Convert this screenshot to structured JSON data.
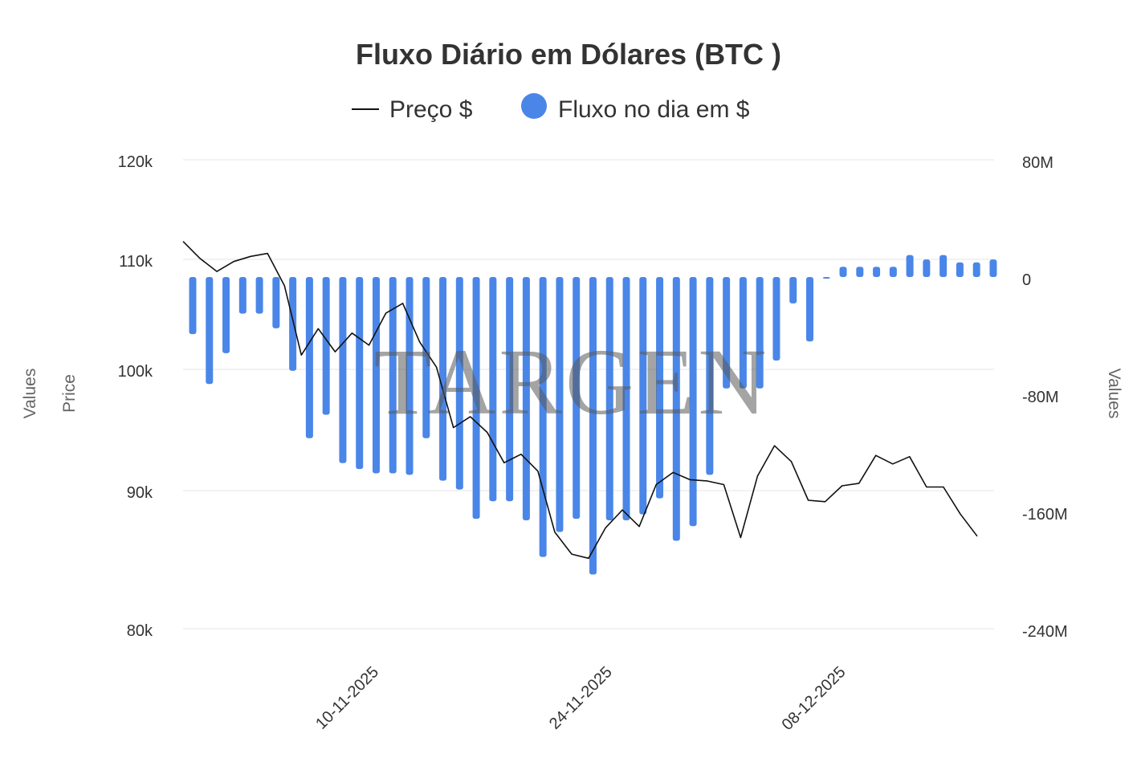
{
  "chart_data": {
    "type": "bar",
    "title": "Fluxo Diário em Dólares (BTC )",
    "legend": {
      "placement": "top-center",
      "items": [
        "Preço $",
        "Fluxo no dia em $"
      ]
    },
    "watermark": "TARGEN",
    "left_axis_titles": [
      "Values",
      "Price"
    ],
    "right_axis_title": "Values",
    "y_left_ticks": [
      "80k",
      "90k",
      "100k",
      "110k",
      "120k"
    ],
    "y_left_tick_values": [
      80000,
      90000,
      100000,
      110000,
      120000
    ],
    "y_right_ticks": [
      "-240M",
      "-160M",
      "-80M",
      "0",
      "80M"
    ],
    "y_right_tick_values": [
      -240,
      -160,
      -80,
      0,
      80
    ],
    "x_tick_labels": [
      "10-11-2025",
      "24-11-2025",
      "08-12-2025"
    ],
    "x_tick_indices": [
      11,
      25,
      39
    ],
    "grid": true,
    "colors": {
      "bars": "#4a86e8",
      "line": "#111111",
      "grid": "#e6e6e6"
    },
    "series": [
      {
        "name": "Preço $",
        "kind": "line",
        "axis": "left",
        "values": [
          111800,
          110100,
          108900,
          109800,
          110300,
          110600,
          107600,
          101300,
          103700,
          101600,
          103300,
          102200,
          105100,
          106000,
          102500,
          100200,
          95200,
          96100,
          94800,
          92300,
          93000,
          91600,
          87000,
          85400,
          85100,
          87300,
          88600,
          87400,
          90500,
          91500,
          90900,
          90800,
          90500,
          86600,
          91200,
          93700,
          92400,
          89300,
          89200,
          90400,
          90600,
          92900,
          92200,
          92800,
          90300,
          90300,
          88300,
          86700
        ]
      },
      {
        "name": "Fluxo no dia em $",
        "kind": "bar",
        "axis": "right",
        "values": [
          -39,
          -73,
          -52,
          -25,
          -25,
          -35,
          -64,
          -110,
          -94,
          -127,
          -131,
          -134,
          -134,
          -135,
          -110,
          -139,
          -145,
          -165,
          -153,
          -153,
          -166,
          -191,
          -174,
          -165,
          -203,
          -166,
          -166,
          -162,
          -151,
          -180,
          -170,
          -135,
          -76,
          -76,
          -76,
          -57,
          -18,
          -44,
          -1,
          7,
          7,
          7,
          7,
          15,
          12,
          15,
          10,
          10,
          12
        ]
      }
    ]
  }
}
